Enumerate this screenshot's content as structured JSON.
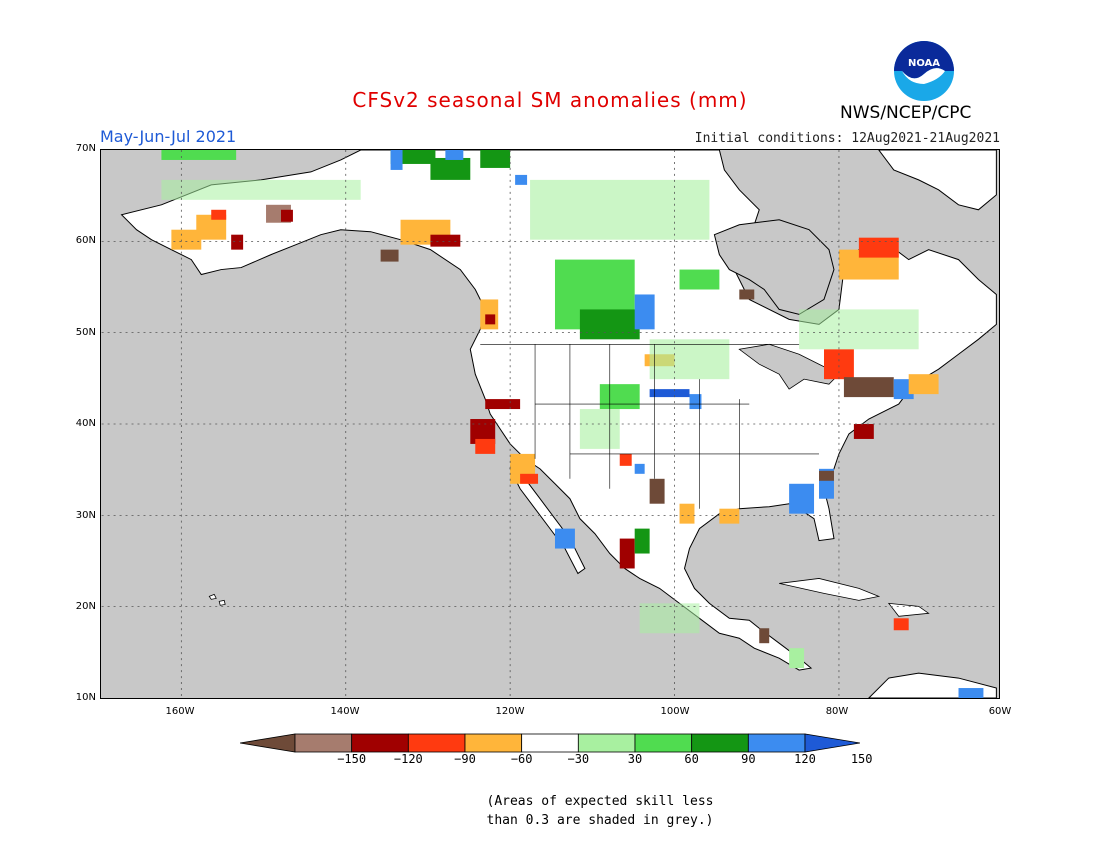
{
  "title": "CFSv2 seasonal SM anomalies (mm)",
  "season": "May-Jun-Jul 2021",
  "initial_conditions": "Initial conditions: 12Aug2021-21Aug2021",
  "agency": "NWS/NCEP/CPC",
  "logo_text": "NOAA",
  "map": {
    "lat_labels": [
      "70N",
      "60N",
      "50N",
      "40N",
      "30N",
      "20N",
      "10N"
    ],
    "lon_labels": [
      "160W",
      "140W",
      "120W",
      "100W",
      "80W",
      "60W"
    ],
    "ocean_color": "#c8c8c8",
    "land_color": "#ffffff"
  },
  "colorbar": {
    "labels": [
      "-150",
      "-120",
      "-90",
      "-60",
      "-30",
      "30",
      "60",
      "90",
      "120",
      "150"
    ],
    "colors": [
      "#6e4a38",
      "#a67c6e",
      "#a00000",
      "#ff3a10",
      "#ffb53a",
      "#ffffff",
      "#a8f0a0",
      "#50dc50",
      "#149614",
      "#3c8cf0",
      "#1e5ad6"
    ]
  },
  "note_line1": "(Areas of expected skill less",
  "note_line2": "than 0.3 are shaded in grey.)"
}
